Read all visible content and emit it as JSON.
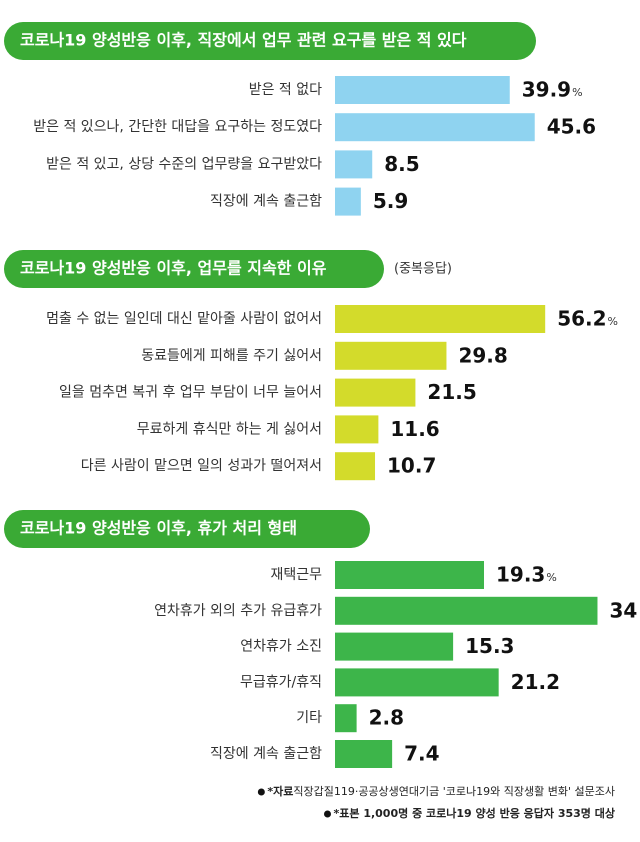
{
  "chart_data": [
    {
      "type": "bar",
      "title": "코로나19 양성반응 이후, 직장에서 업무 관련 요구를 받은 적 있다",
      "unit": "%",
      "color": "#8fd3f0",
      "categories": [
        "받은 적 없다",
        "받은 적 있으나, 간단한 대답을 요구하는 정도였다",
        "받은 적 있고, 상당 수준의 업무량을 요구받았다",
        "직장에 계속 출근함"
      ],
      "values": [
        39.9,
        45.6,
        8.5,
        5.9
      ]
    },
    {
      "type": "bar",
      "title": "코로나19 양성반응 이후, 업무를 지속한 이유",
      "subtitle": "(중복응답)",
      "unit": "%",
      "color": "#d3db2b",
      "categories": [
        "멈출 수 없는 일인데 대신 맡아줄 사람이 없어서",
        "동료들에게 피해를 주기 싫어서",
        "일을 멈추면 복귀 후 업무 부담이 너무 늘어서",
        "무료하게 휴식만 하는 게 싫어서",
        "다른 사람이 맡으면 일의 성과가 떨어져서"
      ],
      "values": [
        56.2,
        29.8,
        21.5,
        11.6,
        10.7
      ]
    },
    {
      "type": "bar",
      "title": "코로나19 양성반응 이후, 휴가 처리 형태",
      "unit": "%",
      "color": "#3db54a",
      "categories": [
        "재택근무",
        "연차휴가 외의 추가 유급휴가",
        "연차휴가 소진",
        "무급휴가/휴직",
        "기타",
        "직장에 계속 출근함"
      ],
      "values": [
        19.3,
        34,
        15.3,
        21.2,
        2.8,
        7.4
      ]
    }
  ],
  "footnotes": [
    {
      "label": "*자료",
      "text": "직장갑질119·공공상생연대기금 '코로나19와 직장생활 변화' 설문조사"
    },
    {
      "label": "*표본 1,000명 중 코로나19 양성 반응 응답자 353명 대상"
    }
  ]
}
